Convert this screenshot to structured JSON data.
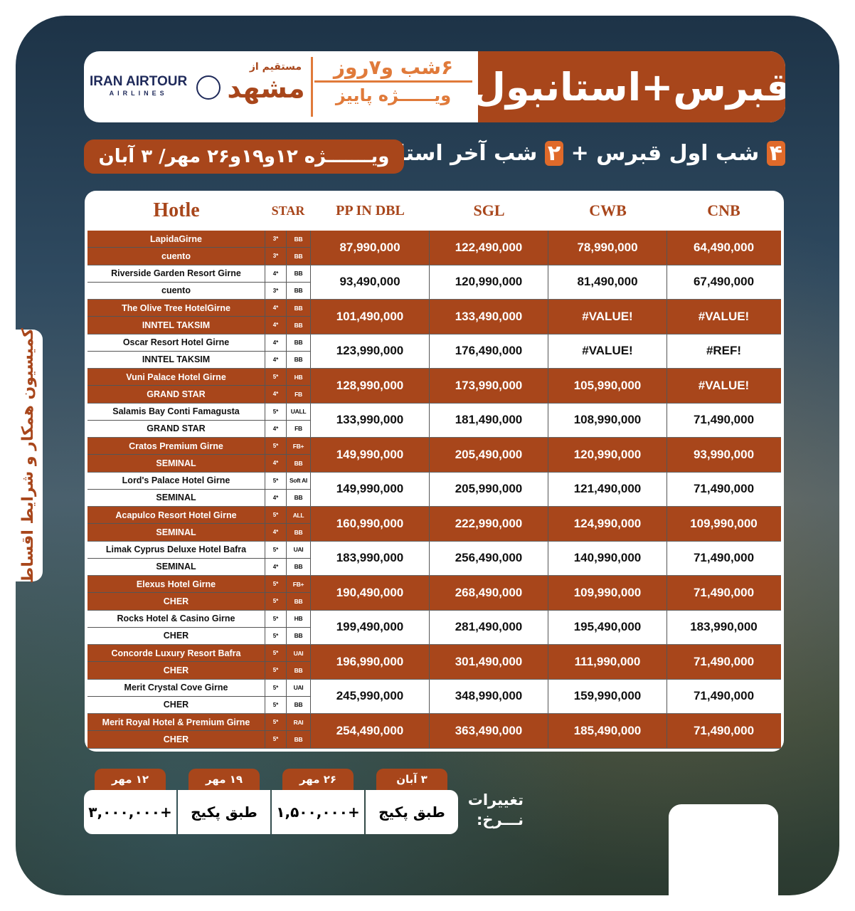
{
  "header": {
    "title": "قبرس+استانبول",
    "nights": "۶شب و۷روز",
    "season": "ویــــــژه پاییز",
    "from_label": "مستقیم از",
    "city": "مشهد",
    "airline_name": "IRAN AIRTOUR",
    "airline_sub": "AIRLINES"
  },
  "subtitle": {
    "part1": "۴",
    "part2": " شب اول قبرس + ",
    "part3": "۲",
    "part4": " شب آخر استانبول"
  },
  "dates_banner": "ویـــــــژه ۱۲و۱۹و۲۶ مهر/ ۳ آبان",
  "side_note": "کمیسیون همکار و شرایط اقساط",
  "colors": {
    "accent": "#a8461b",
    "highlight": "#e06a2a"
  },
  "table": {
    "headers": [
      "Hotle",
      "STAR",
      "PP IN DBL",
      "SGL",
      "CWB",
      "CNB"
    ],
    "groups": [
      {
        "hotels": [
          {
            "name": "LapidaGirne",
            "star": "3*",
            "board": "BB"
          },
          {
            "name": "cuento",
            "star": "3*",
            "board": "BB"
          }
        ],
        "prices": [
          "87,990,000",
          "122,490,000",
          "78,990,000",
          "64,490,000"
        ]
      },
      {
        "hotels": [
          {
            "name": "Riverside Garden Resort Girne",
            "star": "4*",
            "board": "BB"
          },
          {
            "name": "cuento",
            "star": "3*",
            "board": "BB"
          }
        ],
        "prices": [
          "93,490,000",
          "120,990,000",
          "81,490,000",
          "67,490,000"
        ]
      },
      {
        "hotels": [
          {
            "name": "The Olive Tree HotelGirne",
            "star": "4*",
            "board": "BB"
          },
          {
            "name": "INNTEL TAKSIM",
            "star": "4*",
            "board": "BB"
          }
        ],
        "prices": [
          "101,490,000",
          "133,490,000",
          "#VALUE!",
          "#VALUE!"
        ]
      },
      {
        "hotels": [
          {
            "name": "Oscar Resort Hotel Girne",
            "star": "4*",
            "board": "BB"
          },
          {
            "name": "INNTEL TAKSIM",
            "star": "4*",
            "board": "BB"
          }
        ],
        "prices": [
          "123,990,000",
          "176,490,000",
          "#VALUE!",
          "#REF!"
        ]
      },
      {
        "hotels": [
          {
            "name": "Vuni Palace Hotel Girne",
            "star": "5*",
            "board": "HB"
          },
          {
            "name": "GRAND STAR",
            "star": "4*",
            "board": "FB"
          }
        ],
        "prices": [
          "128,990,000",
          "173,990,000",
          "105,990,000",
          "#VALUE!"
        ]
      },
      {
        "hotels": [
          {
            "name": "Salamis Bay Conti Famagusta",
            "star": "5*",
            "board": "UALL"
          },
          {
            "name": "GRAND STAR",
            "star": "4*",
            "board": "FB"
          }
        ],
        "prices": [
          "133,990,000",
          "181,490,000",
          "108,990,000",
          "71,490,000"
        ]
      },
      {
        "hotels": [
          {
            "name": "Cratos Premium Girne",
            "star": "5*",
            "board": "FB+"
          },
          {
            "name": "SEMINAL",
            "star": "4*",
            "board": "BB"
          }
        ],
        "prices": [
          "149,990,000",
          "205,490,000",
          "120,990,000",
          "93,990,000"
        ]
      },
      {
        "hotels": [
          {
            "name": "Lord's Palace Hotel Girne",
            "star": "5*",
            "board": "Soft AI"
          },
          {
            "name": "SEMINAL",
            "star": "4*",
            "board": "BB"
          }
        ],
        "prices": [
          "149,990,000",
          "205,990,000",
          "121,490,000",
          "71,490,000"
        ]
      },
      {
        "hotels": [
          {
            "name": "Acapulco Resort Hotel Girne",
            "star": "5*",
            "board": "ALL"
          },
          {
            "name": "SEMINAL",
            "star": "4*",
            "board": "BB"
          }
        ],
        "prices": [
          "160,990,000",
          "222,990,000",
          "124,990,000",
          "109,990,000"
        ]
      },
      {
        "hotels": [
          {
            "name": "Limak Cyprus Deluxe Hotel Bafra",
            "star": "5*",
            "board": "UAI"
          },
          {
            "name": "SEMINAL",
            "star": "4*",
            "board": "BB"
          }
        ],
        "prices": [
          "183,990,000",
          "256,490,000",
          "140,990,000",
          "71,490,000"
        ]
      },
      {
        "hotels": [
          {
            "name": "Elexus Hotel Girne",
            "star": "5*",
            "board": "FB+"
          },
          {
            "name": "CHER",
            "star": "5*",
            "board": "BB"
          }
        ],
        "prices": [
          "190,490,000",
          "268,490,000",
          "109,990,000",
          "71,490,000"
        ]
      },
      {
        "hotels": [
          {
            "name": "Rocks Hotel & Casino Girne",
            "star": "5*",
            "board": "HB"
          },
          {
            "name": "CHER",
            "star": "5*",
            "board": "BB"
          }
        ],
        "prices": [
          "199,490,000",
          "281,490,000",
          "195,490,000",
          "183,990,000"
        ]
      },
      {
        "hotels": [
          {
            "name": "Concorde Luxury Resort Bafra",
            "star": "5*",
            "board": "UAI"
          },
          {
            "name": "CHER",
            "star": "5*",
            "board": "BB"
          }
        ],
        "prices": [
          "196,990,000",
          "301,490,000",
          "111,990,000",
          "71,490,000"
        ]
      },
      {
        "hotels": [
          {
            "name": "Merit Crystal Cove Girne",
            "star": "5*",
            "board": "UAI"
          },
          {
            "name": "CHER",
            "star": "5*",
            "board": "BB"
          }
        ],
        "prices": [
          "245,990,000",
          "348,990,000",
          "159,990,000",
          "71,490,000"
        ]
      },
      {
        "hotels": [
          {
            "name": "Merit Royal Hotel & Premium Girne",
            "star": "5*",
            "board": "RAI"
          },
          {
            "name": "CHER",
            "star": "5*",
            "board": "BB"
          }
        ],
        "prices": [
          "254,490,000",
          "363,490,000",
          "185,490,000",
          "71,490,000"
        ]
      }
    ]
  },
  "rate_changes": {
    "label1": "تغییرات",
    "label2": "نـــرخ:",
    "items": [
      {
        "date": "۱۲ مهر",
        "value": "+۳,۰۰۰,۰۰۰"
      },
      {
        "date": "۱۹ مهر",
        "value": "طبق پکیج"
      },
      {
        "date": "۲۶ مهر",
        "value": "+۱,۵۰۰,۰۰۰"
      },
      {
        "date": "۳ آبان",
        "value": "طبق پکیج"
      }
    ]
  }
}
